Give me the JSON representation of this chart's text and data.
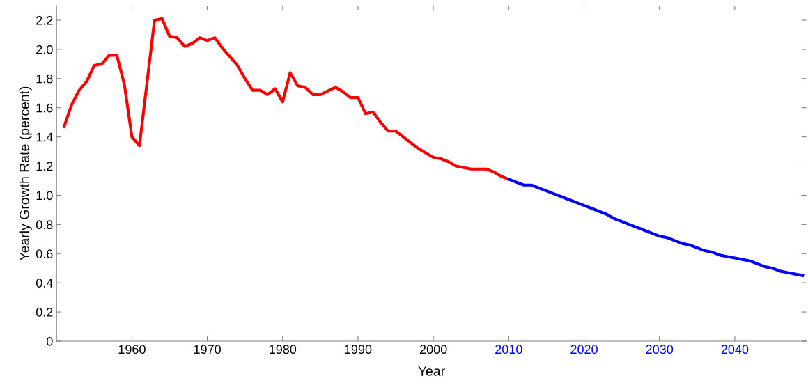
{
  "chart_data": {
    "type": "line",
    "xlabel": "Year",
    "ylabel": "Yearly Growth Rate (percent)",
    "xlim": [
      1950,
      2049.5
    ],
    "xticks": [
      1960,
      1970,
      1980,
      1990,
      2000,
      2010,
      2020,
      2030,
      2040
    ],
    "ylim": [
      0,
      2.3
    ],
    "yticks": [
      0,
      0.2,
      0.4,
      0.6,
      0.8,
      {
        "value": 1,
        "label": "1.0"
      },
      1.2,
      1.4,
      1.6,
      1.8,
      {
        "value": 2,
        "label": "2.0"
      },
      2.2
    ],
    "grid": false,
    "marker": "none",
    "line_style": "solid",
    "series": [
      {
        "color": "#ff0000",
        "x": [
          1951,
          1952,
          1953,
          1954,
          1955,
          1956,
          1957,
          1958,
          1959,
          1960,
          1961,
          1963,
          1964,
          1965,
          1966,
          1967,
          1968,
          1969,
          1970,
          1971,
          1972,
          1974,
          1975,
          1976,
          1977,
          1978,
          1979,
          1980,
          1981,
          1982,
          1983,
          1984,
          1985,
          1987,
          1988,
          1989,
          1990,
          1991,
          1992,
          1993,
          1994,
          1995,
          1996,
          1997,
          1998,
          1999,
          2000,
          2001,
          2002,
          2003,
          2004,
          2005,
          2006,
          2007,
          2008,
          2009,
          2010
        ],
        "values": [
          1.47,
          1.62,
          1.72,
          1.78,
          1.89,
          1.9,
          1.96,
          1.96,
          1.76,
          1.4,
          1.34,
          2.2,
          2.21,
          2.09,
          2.08,
          2.02,
          2.04,
          2.08,
          2.06,
          2.08,
          2.01,
          1.89,
          1.8,
          1.72,
          1.72,
          1.69,
          1.73,
          1.64,
          1.84,
          1.75,
          1.74,
          1.69,
          1.69,
          1.74,
          1.71,
          1.67,
          1.67,
          1.56,
          1.57,
          1.5,
          1.44,
          1.44,
          1.4,
          1.36,
          1.32,
          1.29,
          1.26,
          1.25,
          1.23,
          1.2,
          1.19,
          1.18,
          1.18,
          1.18,
          1.16,
          1.13,
          1.11
        ]
      },
      {
        "color": "#0000ff",
        "x": [
          2010,
          2012,
          2013,
          2014,
          2015,
          2016,
          2017,
          2018,
          2019,
          2020,
          2021,
          2022,
          2023,
          2024,
          2025,
          2026,
          2027,
          2028,
          2029,
          2030,
          2031,
          2032,
          2033,
          2034,
          2035,
          2036,
          2037,
          2038,
          2039,
          2040,
          2041,
          2042,
          2043,
          2044,
          2045,
          2046,
          2047,
          2048,
          2049
        ],
        "values": [
          1.11,
          1.07,
          1.07,
          1.05,
          1.03,
          1.01,
          0.99,
          0.97,
          0.95,
          0.93,
          0.91,
          0.89,
          0.87,
          0.84,
          0.82,
          0.8,
          0.78,
          0.76,
          0.74,
          0.72,
          0.71,
          0.69,
          0.67,
          0.66,
          0.64,
          0.62,
          0.61,
          0.59,
          0.58,
          0.57,
          0.56,
          0.55,
          0.53,
          0.51,
          0.5,
          0.48,
          0.47,
          0.46,
          0.45
        ]
      }
    ]
  }
}
